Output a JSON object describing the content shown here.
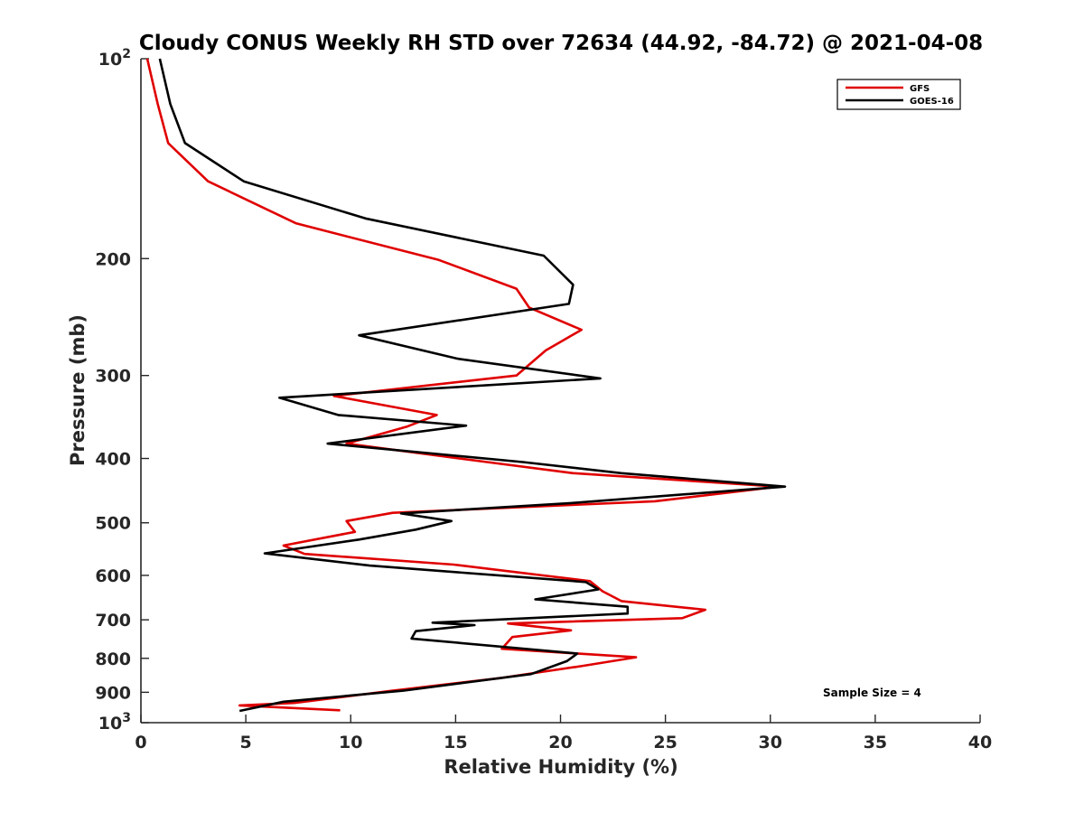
{
  "chart_data": {
    "type": "line",
    "title": "Cloudy CONUS Weekly RH STD over 72634 (44.92, -84.72) @ 2021-04-08",
    "xlabel": "Relative Humidity (%)",
    "ylabel": "Pressure (mb)",
    "xlim": [
      0,
      40
    ],
    "ylim": [
      100,
      1000
    ],
    "y_scale": "log",
    "y_reversed": true,
    "x_ticks": [
      "0",
      "5",
      "10",
      "15",
      "20",
      "25",
      "30",
      "35",
      "40"
    ],
    "y_ticks": [
      {
        "value": 100,
        "base": "10",
        "exp": "2"
      },
      {
        "value": 200,
        "label": "200"
      },
      {
        "value": 300,
        "label": "300"
      },
      {
        "value": 400,
        "label": "400"
      },
      {
        "value": 500,
        "label": "500"
      },
      {
        "value": 600,
        "label": "600"
      },
      {
        "value": 700,
        "label": "700"
      },
      {
        "value": 800,
        "label": "800"
      },
      {
        "value": 900,
        "label": "900"
      },
      {
        "value": 1000,
        "base": "10",
        "exp": "3"
      }
    ],
    "legend_position": "top-right",
    "grid": false,
    "annotation": "Sample Size = 4",
    "series": [
      {
        "name": "GFS",
        "color": "#e00000",
        "x": [
          0.3,
          0.8,
          1.3,
          3.2,
          7.4,
          14.2,
          17.9,
          18.5,
          21.0,
          19.3,
          17.9,
          9.2,
          14.1,
          12.7,
          9.8,
          16.5,
          20.6,
          30.4,
          24.5,
          12.0,
          9.8,
          10.2,
          6.8,
          7.8,
          14.9,
          21.4,
          22.0,
          22.9,
          26.9,
          25.8,
          17.5,
          20.5,
          17.7,
          17.2,
          23.6,
          21.1,
          17.2,
          12.0,
          7.3,
          4.7,
          9.5
        ],
        "y": [
          100,
          117,
          134,
          153,
          177,
          201,
          222,
          237,
          256,
          275,
          300,
          322,
          344,
          358,
          380,
          405,
          421,
          441,
          464,
          483,
          497,
          516,
          541,
          557,
          578,
          612,
          634,
          656,
          676,
          696,
          709,
          726,
          743,
          774,
          797,
          821,
          856,
          895,
          934,
          942,
          958
        ]
      },
      {
        "name": "GOES-16",
        "color": "#000000",
        "x": [
          0.9,
          1.4,
          2.1,
          4.9,
          10.7,
          19.2,
          20.6,
          20.4,
          10.4,
          15.1,
          21.9,
          6.6,
          9.4,
          15.5,
          8.9,
          18.2,
          22.9,
          30.7,
          20.5,
          12.4,
          14.8,
          13.1,
          10.4,
          5.9,
          10.9,
          21.2,
          21.8,
          18.8,
          23.2,
          23.2,
          13.9,
          15.9,
          13.1,
          12.9,
          20.8,
          20.3,
          18.6,
          12.5,
          6.8,
          4.7
        ],
        "y": [
          100,
          117,
          134,
          153,
          174,
          198,
          219,
          234,
          261,
          283,
          303,
          324,
          344,
          357,
          380,
          405,
          421,
          441,
          467,
          484,
          497,
          512,
          530,
          556,
          580,
          614,
          630,
          652,
          669,
          685,
          707,
          713,
          728,
          747,
          787,
          808,
          845,
          895,
          930,
          960
        ]
      }
    ]
  }
}
